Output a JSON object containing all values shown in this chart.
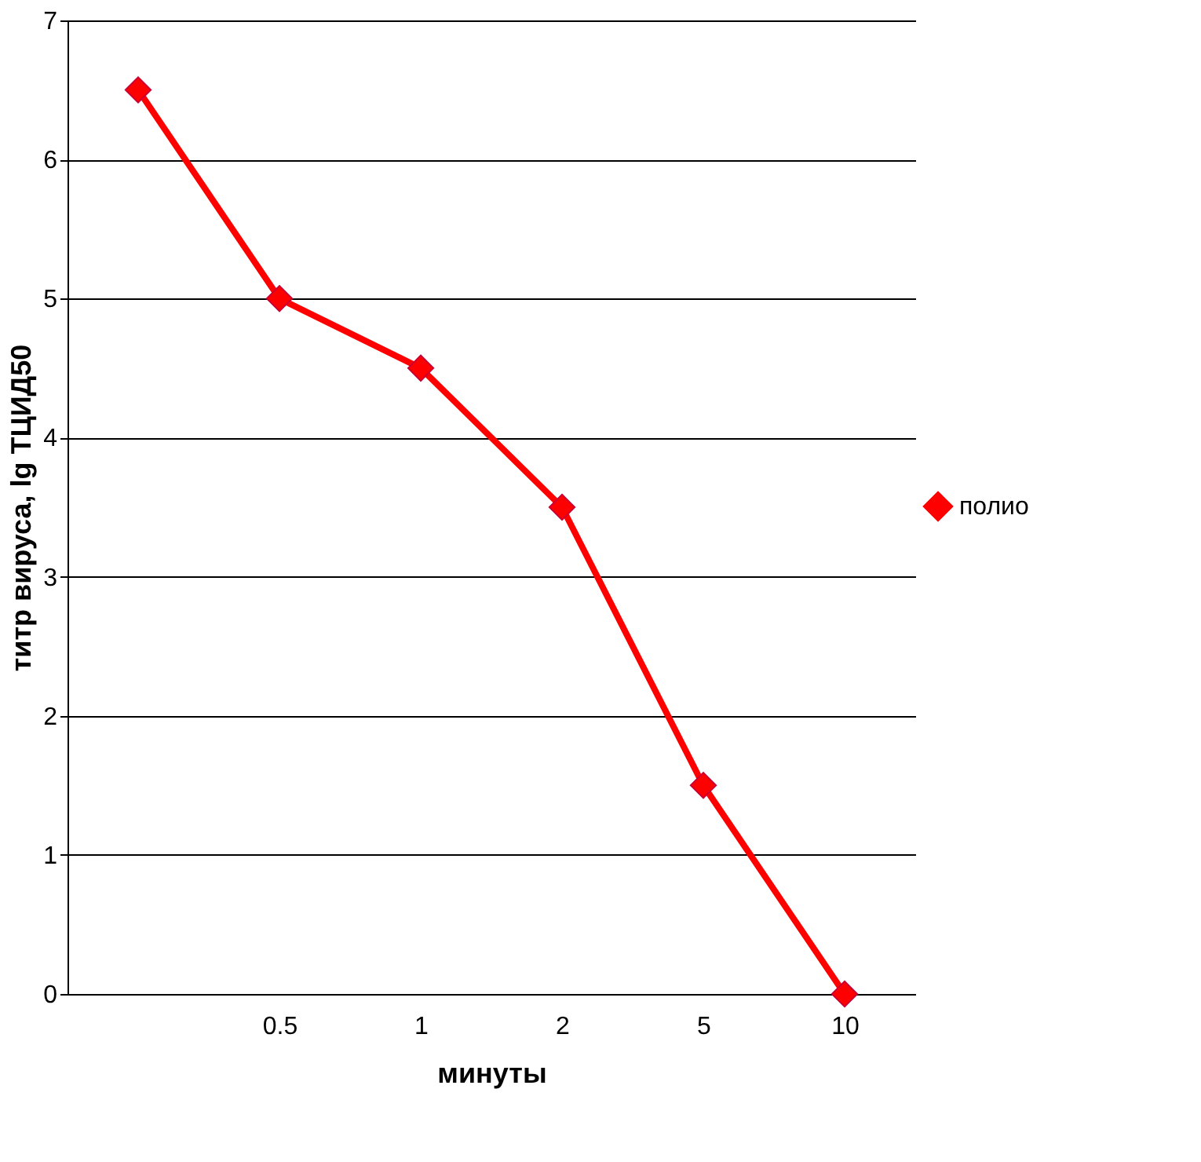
{
  "chart_data": {
    "type": "line",
    "xlabel": "минуты",
    "ylabel": "титр вируса, lg ТЦИД50",
    "categories": [
      null,
      "0.5",
      "1",
      "2",
      "5",
      "10"
    ],
    "series": [
      {
        "name": "полио",
        "color": "#ff0000",
        "values": [
          6.5,
          5,
          4.5,
          3.5,
          1.5,
          0
        ]
      }
    ],
    "ylim": [
      0,
      7
    ],
    "yticks": [
      0,
      1,
      2,
      3,
      4,
      5,
      6,
      7
    ],
    "grid": "y",
    "legend": "right",
    "marker": "diamond",
    "line_style": "solid"
  }
}
